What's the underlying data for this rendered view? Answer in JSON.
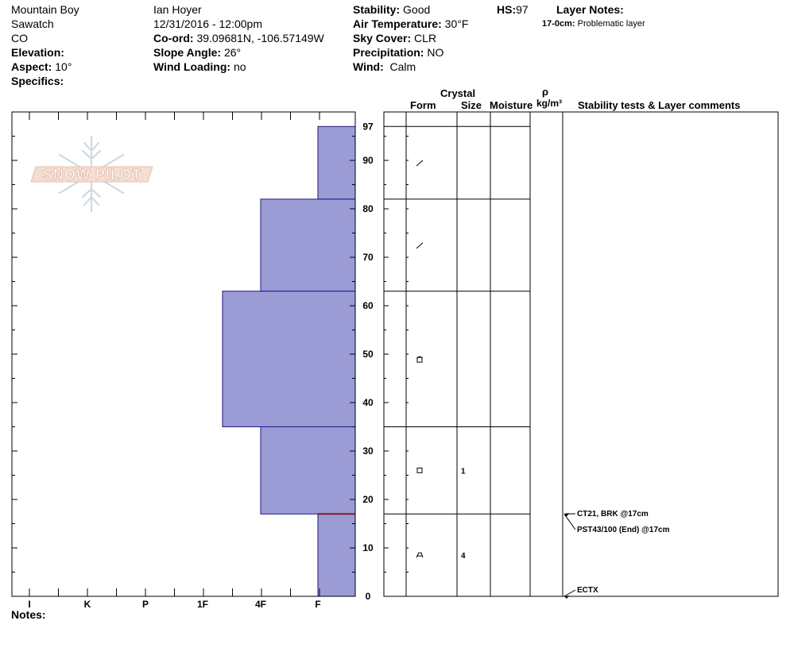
{
  "header": {
    "location": "Mountain Boy",
    "range": "Sawatch",
    "state": "CO",
    "elevation_label": "Elevation:",
    "aspect_label": "Aspect:",
    "aspect_value": "10°",
    "specifics_label": "Specifics:",
    "observer": "Ian Hoyer",
    "datetime": "12/31/2016 - 12:00pm",
    "coord_label": "Co-ord:",
    "coord_value": "39.09681N, -106.57149W",
    "slope_label": "Slope Angle:",
    "slope_value": "26°",
    "wind_loading_label": "Wind Loading:",
    "wind_loading_value": "no",
    "stability_label": "Stability:",
    "stability_value": "Good",
    "air_temp_label": "Air Temperature:",
    "air_temp_value": "30°F",
    "sky_label": "Sky Cover:",
    "sky_value": "CLR",
    "precip_label": "Precipitation:",
    "precip_value": "NO",
    "wind_label": "Wind:",
    "wind_value": "Calm",
    "hs_label": "HS:",
    "hs_value": "97",
    "layer_notes_label": "Layer Notes:",
    "layer_note_depth": "17-0cm:",
    "layer_note_text": "Problematic layer"
  },
  "columns": {
    "crystal": "Crystal",
    "form": "Form",
    "size": "Size",
    "moisture": "Moisture",
    "rho": "ρ",
    "density_unit": "kg/m³",
    "stability": "Stability tests & Layer comments"
  },
  "notes_label": "Notes:",
  "logo_text": "SNOW PILOT",
  "colors": {
    "hardness_fill": "#9b9bd6",
    "hardness_stroke": "#1a1a80",
    "weak_layer": "#8b1a1a"
  },
  "chart_data": {
    "type": "snow-profile",
    "total_depth_cm": 97,
    "y_range": [
      0,
      97
    ],
    "y_ticks": [
      0,
      10,
      20,
      30,
      40,
      50,
      60,
      70,
      80,
      90,
      97
    ],
    "hardness_scale": [
      "I",
      "K",
      "P",
      "1F",
      "4F",
      "F"
    ],
    "layers": [
      {
        "top": 97,
        "bottom": 82,
        "hardness": "F",
        "form": "decomposing",
        "size": ""
      },
      {
        "top": 82,
        "bottom": 63,
        "hardness": "4F",
        "form": "decomposing",
        "size": ""
      },
      {
        "top": 63,
        "bottom": 35,
        "hardness": "1F+",
        "form": "rounded-faceted",
        "size": ""
      },
      {
        "top": 35,
        "bottom": 17,
        "hardness": "4F",
        "form": "faceted",
        "size": "1"
      },
      {
        "top": 17,
        "bottom": 0,
        "hardness": "F",
        "form": "depth-hoar",
        "size": "4"
      }
    ],
    "weak_layer_cm": 17,
    "stability_tests": [
      {
        "label": "CT21, BRK @17cm",
        "depth": 17
      },
      {
        "label": "PST43/100 (End) @17cm",
        "depth": 17
      },
      {
        "label": "ECTX",
        "depth": 0
      }
    ]
  }
}
